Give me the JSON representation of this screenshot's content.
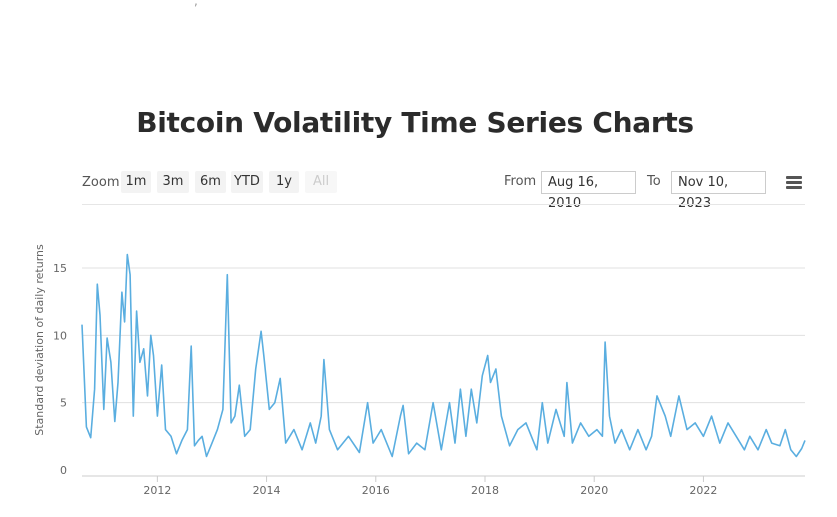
{
  "top_fragment": ",",
  "title": "Bitcoin Volatility Time Series Charts",
  "toolbar": {
    "zoom_label": "Zoom",
    "zoom_buttons": [
      "1m",
      "3m",
      "6m",
      "YTD",
      "1y",
      "All"
    ],
    "active_range": "All",
    "from_label": "From",
    "from_value": "Aug 16, 2010",
    "to_label": "To",
    "to_value": "Nov 10, 2023",
    "menu_icon": "hamburger-menu-icon"
  },
  "colors": {
    "line": "#5aaee0",
    "grid": "#e0e0e0"
  },
  "chart_data": {
    "type": "line",
    "title": "Bitcoin Volatility Time Series Charts",
    "xlabel": "",
    "ylabel": "Standard deviation of daily returns",
    "xlim": [
      2010.62,
      2023.86
    ],
    "ylim": [
      0,
      17
    ],
    "y_ticks": [
      0,
      5,
      10,
      15
    ],
    "x_ticks": [
      2012,
      2014,
      2016,
      2018,
      2020,
      2022
    ],
    "grid": "horizontal",
    "series": [
      {
        "name": "",
        "x": [
          2010.62,
          2010.7,
          2010.78,
          2010.85,
          2010.9,
          2010.95,
          2011.02,
          2011.08,
          2011.15,
          2011.22,
          2011.28,
          2011.35,
          2011.4,
          2011.45,
          2011.5,
          2011.56,
          2011.62,
          2011.68,
          2011.75,
          2011.82,
          2011.88,
          2011.93,
          2012.0,
          2012.08,
          2012.15,
          2012.25,
          2012.35,
          2012.45,
          2012.55,
          2012.62,
          2012.68,
          2012.75,
          2012.82,
          2012.9,
          2013.0,
          2013.1,
          2013.2,
          2013.28,
          2013.35,
          2013.42,
          2013.5,
          2013.6,
          2013.7,
          2013.8,
          2013.9,
          2013.95,
          2014.05,
          2014.15,
          2014.25,
          2014.35,
          2014.5,
          2014.65,
          2014.8,
          2014.9,
          2015.0,
          2015.05,
          2015.15,
          2015.3,
          2015.5,
          2015.7,
          2015.85,
          2015.95,
          2016.1,
          2016.3,
          2016.45,
          2016.5,
          2016.6,
          2016.75,
          2016.9,
          2017.05,
          2017.2,
          2017.35,
          2017.45,
          2017.55,
          2017.65,
          2017.75,
          2017.85,
          2017.95,
          2018.05,
          2018.1,
          2018.2,
          2018.3,
          2018.45,
          2018.6,
          2018.75,
          2018.9,
          2018.95,
          2019.05,
          2019.15,
          2019.3,
          2019.45,
          2019.5,
          2019.6,
          2019.75,
          2019.9,
          2020.05,
          2020.15,
          2020.2,
          2020.28,
          2020.38,
          2020.5,
          2020.65,
          2020.8,
          2020.95,
          2021.05,
          2021.15,
          2021.3,
          2021.4,
          2021.55,
          2021.7,
          2021.85,
          2022.0,
          2022.15,
          2022.3,
          2022.45,
          2022.6,
          2022.75,
          2022.85,
          2023.0,
          2023.15,
          2023.25,
          2023.4,
          2023.5,
          2023.6,
          2023.7,
          2023.8,
          2023.86
        ],
        "values": [
          10.8,
          3.2,
          2.4,
          6.0,
          13.8,
          11.5,
          4.5,
          9.8,
          8.0,
          3.6,
          6.5,
          13.2,
          11.0,
          16.0,
          14.5,
          4.0,
          11.8,
          8.0,
          9.0,
          5.5,
          10.0,
          8.5,
          4.0,
          7.8,
          3.0,
          2.5,
          1.2,
          2.2,
          3.0,
          9.2,
          1.8,
          2.2,
          2.5,
          1.0,
          2.0,
          3.0,
          4.5,
          14.5,
          3.5,
          4.0,
          6.3,
          2.5,
          3.0,
          7.5,
          10.3,
          8.5,
          4.5,
          5.0,
          6.8,
          2.0,
          3.0,
          1.5,
          3.5,
          2.0,
          4.0,
          8.2,
          3.0,
          1.5,
          2.5,
          1.3,
          5.0,
          2.0,
          3.0,
          1.0,
          4.0,
          4.8,
          1.2,
          2.0,
          1.5,
          5.0,
          1.5,
          5.0,
          2.0,
          6.0,
          2.5,
          6.0,
          3.5,
          7.0,
          8.5,
          6.5,
          7.5,
          4.0,
          1.8,
          3.0,
          3.5,
          2.0,
          1.5,
          5.0,
          2.0,
          4.5,
          2.5,
          6.5,
          2.0,
          3.5,
          2.5,
          3.0,
          2.5,
          9.5,
          4.0,
          2.0,
          3.0,
          1.5,
          3.0,
          1.5,
          2.5,
          5.5,
          4.0,
          2.5,
          5.5,
          3.0,
          3.5,
          2.5,
          4.0,
          2.0,
          3.5,
          2.5,
          1.5,
          2.5,
          1.5,
          3.0,
          2.0,
          1.8,
          3.0,
          1.5,
          1.0,
          1.6,
          2.2
        ]
      }
    ]
  }
}
